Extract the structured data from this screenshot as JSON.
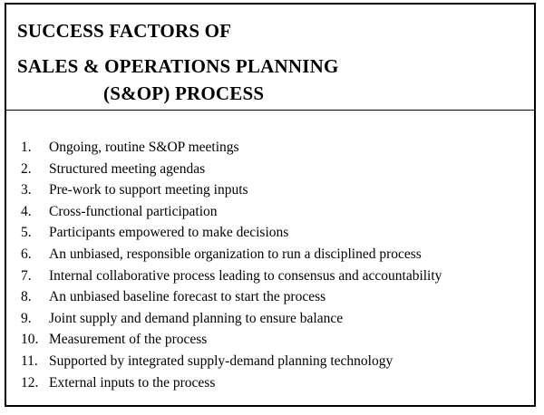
{
  "title": {
    "line1": "SUCCESS FACTORS OF",
    "line2": "SALES & OPERATIONS PLANNING",
    "line3": "(S&OP) PROCESS"
  },
  "items": [
    {
      "number": "1.",
      "text": "Ongoing, routine S&OP meetings"
    },
    {
      "number": "2.",
      "text": "Structured meeting agendas"
    },
    {
      "number": "3.",
      "text": "Pre-work to support meeting inputs"
    },
    {
      "number": "4.",
      "text": "Cross-functional participation"
    },
    {
      "number": "5.",
      "text": "Participants empowered to make decisions"
    },
    {
      "number": "6.",
      "text": "An unbiased, responsible organization to run a disciplined process"
    },
    {
      "number": "7.",
      "text": "Internal collaborative process leading to consensus and accountability"
    },
    {
      "number": "8.",
      "text": "An unbiased baseline forecast to start the process"
    },
    {
      "number": "9.",
      "text": "Joint supply and demand planning to ensure balance"
    },
    {
      "number": "10.",
      "text": "Measurement of the process"
    },
    {
      "number": "11.",
      "text": "Supported by integrated supply-demand planning technology"
    },
    {
      "number": "12.",
      "text": "External inputs to the process"
    }
  ]
}
